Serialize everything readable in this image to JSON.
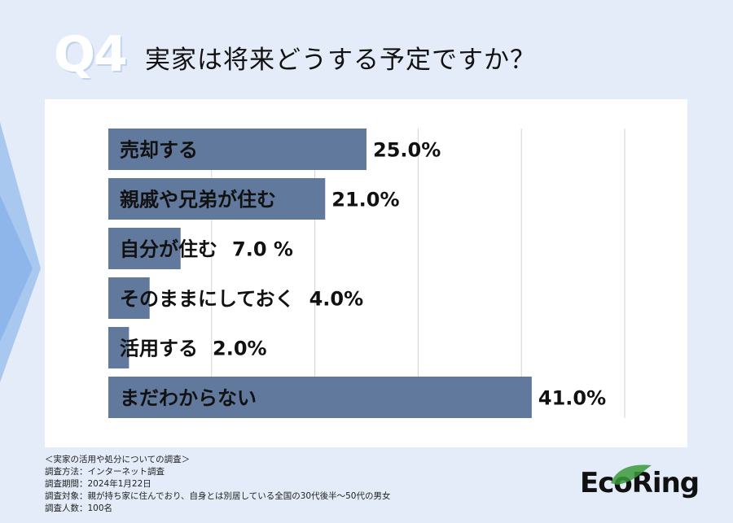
{
  "header": {
    "badge": "Q4",
    "title": "実家は将来どうする予定ですか？"
  },
  "footer": {
    "lines": [
      "＜実家の活用や処分についての調査＞",
      "調査方法：インターネット調査",
      "調査期間：2024年1月22日",
      "調査対象：親が持ち家に住んでおり、自身とは別居している全国の30代後半〜50代の男女",
      "調査人数：100名"
    ]
  },
  "logo": {
    "text": "EcoRing",
    "color_leaf": "#3a9a3a"
  },
  "colors": {
    "bar": "#62799e",
    "background": "#e3ecf8",
    "panel": "#ffffff"
  },
  "chart_data": {
    "type": "bar",
    "orientation": "horizontal",
    "categories": [
      "売却する",
      "親戚や兄弟が住む",
      "自分が住む",
      "そのままにしておく",
      "活用する",
      "まだわからない"
    ],
    "values": [
      25.0,
      21.0,
      7.0,
      4.0,
      2.0,
      41.0
    ],
    "value_labels": [
      "25.0%",
      "21.0%",
      "7.0 %",
      "4.0%",
      "2.0%",
      "41.0%"
    ],
    "xlim": [
      0,
      50
    ],
    "grid": true,
    "title": "",
    "xlabel": "",
    "ylabel": ""
  }
}
